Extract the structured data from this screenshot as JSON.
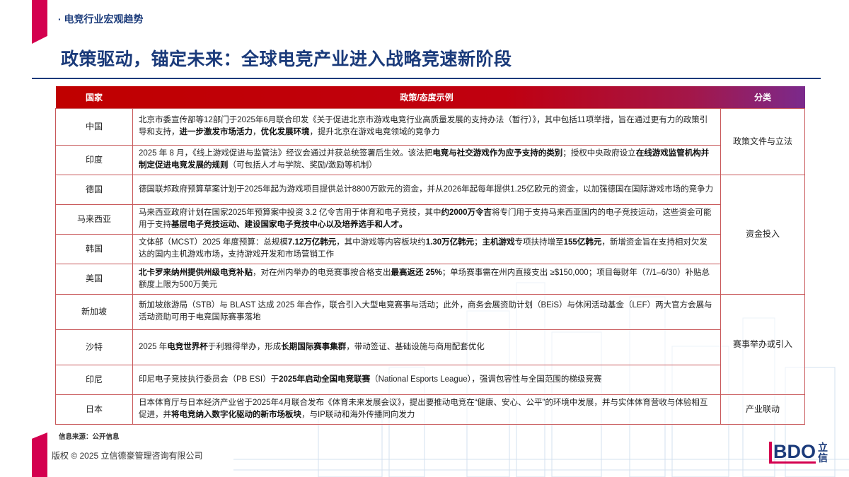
{
  "header": {
    "section": "· 电竞行业宏观趋势",
    "title": "政策驱动，锚定未来：全球电竞产业进入战略竞速新阶段"
  },
  "table": {
    "columns": [
      "国家",
      "政策/态度示例",
      "分类"
    ],
    "rows": [
      {
        "country": "中国",
        "policy": [
          {
            "t": "北京市委宣传部等12部门于2025年6月联合印发《关于促进北京市游戏电竞行业高质量发展的支持办法（暂行）》，其中包括11项举措，旨在通过更有力的政策引导和支持，"
          },
          {
            "t": "进一步激发市场活力",
            "b": 1
          },
          {
            "t": "，"
          },
          {
            "t": "优化发展环境",
            "b": 1
          },
          {
            "t": "，提升北京在游戏电竞领域的竞争力"
          }
        ]
      },
      {
        "country": "印度",
        "policy": [
          {
            "t": "2025 年 8 月，《线上游戏促进与监管法》经议会通过并获总统签署后生效。该法把"
          },
          {
            "t": "电竞与社交游戏作为应予支持的类别",
            "b": 1
          },
          {
            "t": "；授权中央政府设立"
          },
          {
            "t": "在线游戏监管机构并制定促进电竞发展的规则",
            "b": 1
          },
          {
            "t": "（可包括人才与学院、奖励/激励等机制）"
          }
        ]
      },
      {
        "country": "德国",
        "policy": [
          {
            "t": "德国联邦政府预算草案计划于2025年起为游戏项目提供总计8800万欧元的资金，并从2026年起每年提供1.25亿欧元的资金，以加强德国在国际游戏市场的竞争力"
          }
        ]
      },
      {
        "country": "马来西亚",
        "policy": [
          {
            "t": "马来西亚政府计划在国家2025年预算案中投资 3.2 亿令吉用于体育和电子竞技，其中"
          },
          {
            "t": "约2000万令吉",
            "b": 1
          },
          {
            "t": "将专门用于支持马来西亚国内的电子竞技运动，这些资金可能用于支持"
          },
          {
            "t": "基层电子竞技运动、建设国家电子竞技中心以及培养选手和人才。",
            "b": 1
          }
        ]
      },
      {
        "country": "韩国",
        "policy": [
          {
            "t": "文体部（MCST）2025 年度预算：总规模"
          },
          {
            "t": "7.12万亿韩元",
            "b": 1
          },
          {
            "t": "，其中游戏等内容板块约"
          },
          {
            "t": "1.30万亿韩元",
            "b": 1
          },
          {
            "t": "；"
          },
          {
            "t": "主机游戏",
            "b": 1
          },
          {
            "t": "专项扶持增至"
          },
          {
            "t": "155亿韩元",
            "b": 1
          },
          {
            "t": "，新增资金旨在支持相对欠发达的国内主机游戏市场，支持游戏开发和市场营销工作"
          }
        ]
      },
      {
        "country": "美国",
        "policy": [
          {
            "t": "北卡罗来纳州提供州级电竞补贴",
            "b": 1
          },
          {
            "t": "，对在州内举办的电竞赛事按合格支出"
          },
          {
            "t": "最高返还 25%",
            "b": 1
          },
          {
            "t": "；单场赛事需在州内直接支出 ≥$150,000；项目每财年（7/1–6/30）补贴总额度上限为500万美元"
          }
        ]
      },
      {
        "country": "新加坡",
        "policy": [
          {
            "t": "新加坡旅游局（STB）与 BLAST 达成 2025 年合作，联合引入大型电竞赛事与活动；此外，商务会展资助计划（BEiS）与休闲活动基金（LEF）两大官方会展与活动资助可用于电竞国际赛事落地"
          }
        ]
      },
      {
        "country": "沙特",
        "policy": [
          {
            "t": "2025 年"
          },
          {
            "t": "电竞世界杯",
            "b": 1
          },
          {
            "t": "于利雅得举办，形成"
          },
          {
            "t": "长期国际赛事集群",
            "b": 1
          },
          {
            "t": "，带动签证、基础设施与商用配套优化"
          }
        ]
      },
      {
        "country": "印尼",
        "policy": [
          {
            "t": "印尼电子竞技执行委员会（PB ESI）于"
          },
          {
            "t": "2025年启动全国电竞联赛",
            "b": 1
          },
          {
            "t": "（National Esports League），强调包容性与全国范围的梯级竞赛"
          }
        ]
      },
      {
        "country": "日本",
        "policy": [
          {
            "t": "日本体育厅与日本经济产业省于2025年4月联合发布《体育未来发展会议》，提出要推动电竞在“健康、安心、公平”的环境中发展，并与实体体育营收与体验相互促进，并"
          },
          {
            "t": "将电竞纳入数字化驱动的新市场板块",
            "b": 1
          },
          {
            "t": "，与IP联动和海外传播同向发力"
          }
        ]
      }
    ],
    "categories": [
      {
        "label": "政策文件与立法",
        "span": 2
      },
      {
        "label": "资金投入",
        "span": 4
      },
      {
        "label": "赛事举办或引入",
        "span": 3
      },
      {
        "label": "产业联动",
        "span": 1
      }
    ]
  },
  "footer": {
    "source": "信息来源：公开信息",
    "copyright": "版权 © 2025 立信德豪管理咨询有限公司",
    "logo": "BDO 立信"
  },
  "colors": {
    "brand_blue": "#1a3a7a",
    "accent_red": "#c00000",
    "magenta": "#d4004f",
    "purple": "#7b2a8c"
  }
}
